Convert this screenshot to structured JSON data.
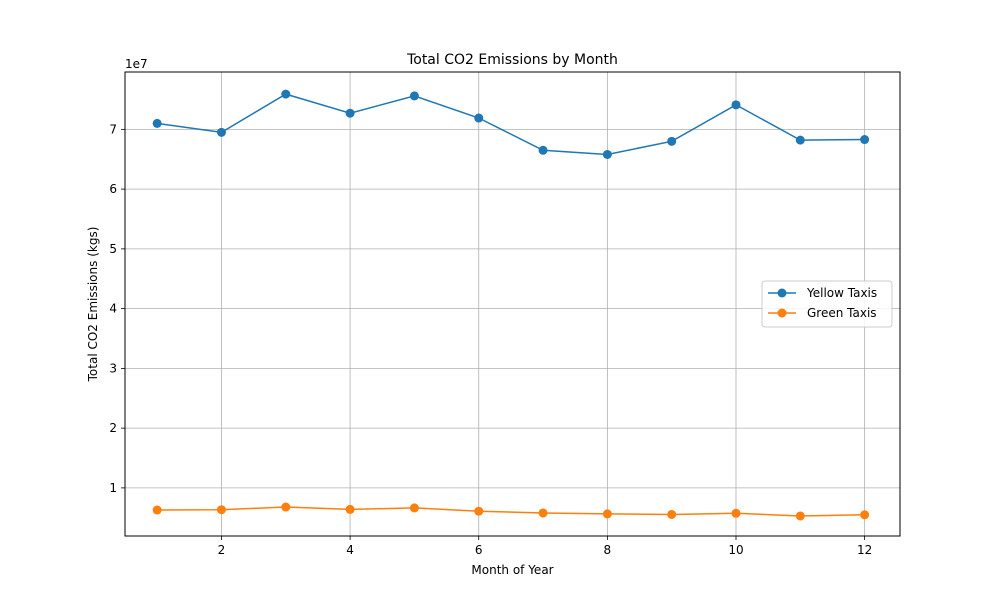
{
  "chart_data": {
    "type": "line",
    "title": "Total CO2 Emissions by Month",
    "xlabel": "Month of Year",
    "ylabel": "Total CO2 Emissions (kgs)",
    "y_offset_label": "1e7",
    "x": [
      1,
      2,
      3,
      4,
      5,
      6,
      7,
      8,
      9,
      10,
      11,
      12
    ],
    "xlim": [
      0.5,
      12.55
    ],
    "ylim": [
      0.195,
      7.96
    ],
    "x_ticks": [
      2,
      4,
      6,
      8,
      10,
      12
    ],
    "y_ticks": [
      1,
      2,
      3,
      4,
      5,
      6,
      7
    ],
    "y_scale_note": "values in units of 1e7 kgs",
    "grid": true,
    "legend_position": "center-right",
    "series": [
      {
        "name": "Yellow Taxis",
        "color": "#1f77b4",
        "values": [
          7.1,
          6.95,
          7.59,
          7.27,
          7.56,
          7.19,
          6.65,
          6.58,
          6.8,
          7.41,
          6.82,
          6.83
        ]
      },
      {
        "name": "Green Taxis",
        "color": "#ff7f0e",
        "values": [
          0.63,
          0.635,
          0.68,
          0.64,
          0.665,
          0.61,
          0.58,
          0.565,
          0.555,
          0.575,
          0.53,
          0.55
        ]
      }
    ]
  }
}
